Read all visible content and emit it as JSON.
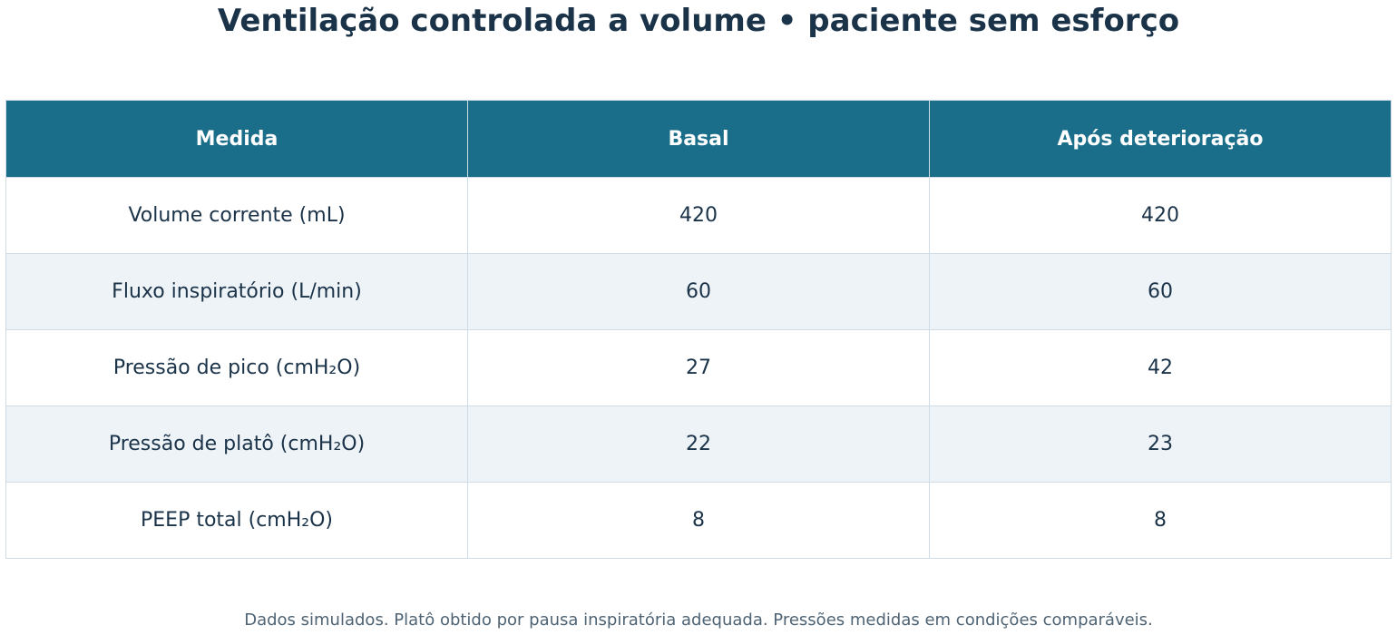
{
  "chart_data": {
    "type": "table",
    "title": "Ventilação controlada a volume • paciente sem esforço",
    "columns": [
      "Medida",
      "Basal",
      "Após deterioração"
    ],
    "rows": [
      [
        "Volume corrente (mL)",
        "420",
        "420"
      ],
      [
        "Fluxo inspiratório (L/min)",
        "60",
        "60"
      ],
      [
        "Pressão de pico (cmH₂O)",
        "27",
        "42"
      ],
      [
        "Pressão de platô (cmH₂O)",
        "22",
        "23"
      ],
      [
        "PEEP total (cmH₂O)",
        "8",
        "8"
      ]
    ],
    "footnote": "Dados simulados. Platô obtido por pausa inspiratória adequada. Pressões medidas em condições comparáveis."
  },
  "colors": {
    "header_bg": "#1a6e89",
    "header_text": "#ffffff",
    "text": "#1b3349",
    "row_alt_bg": "#eef3f8",
    "border": "#cfdbe5"
  }
}
